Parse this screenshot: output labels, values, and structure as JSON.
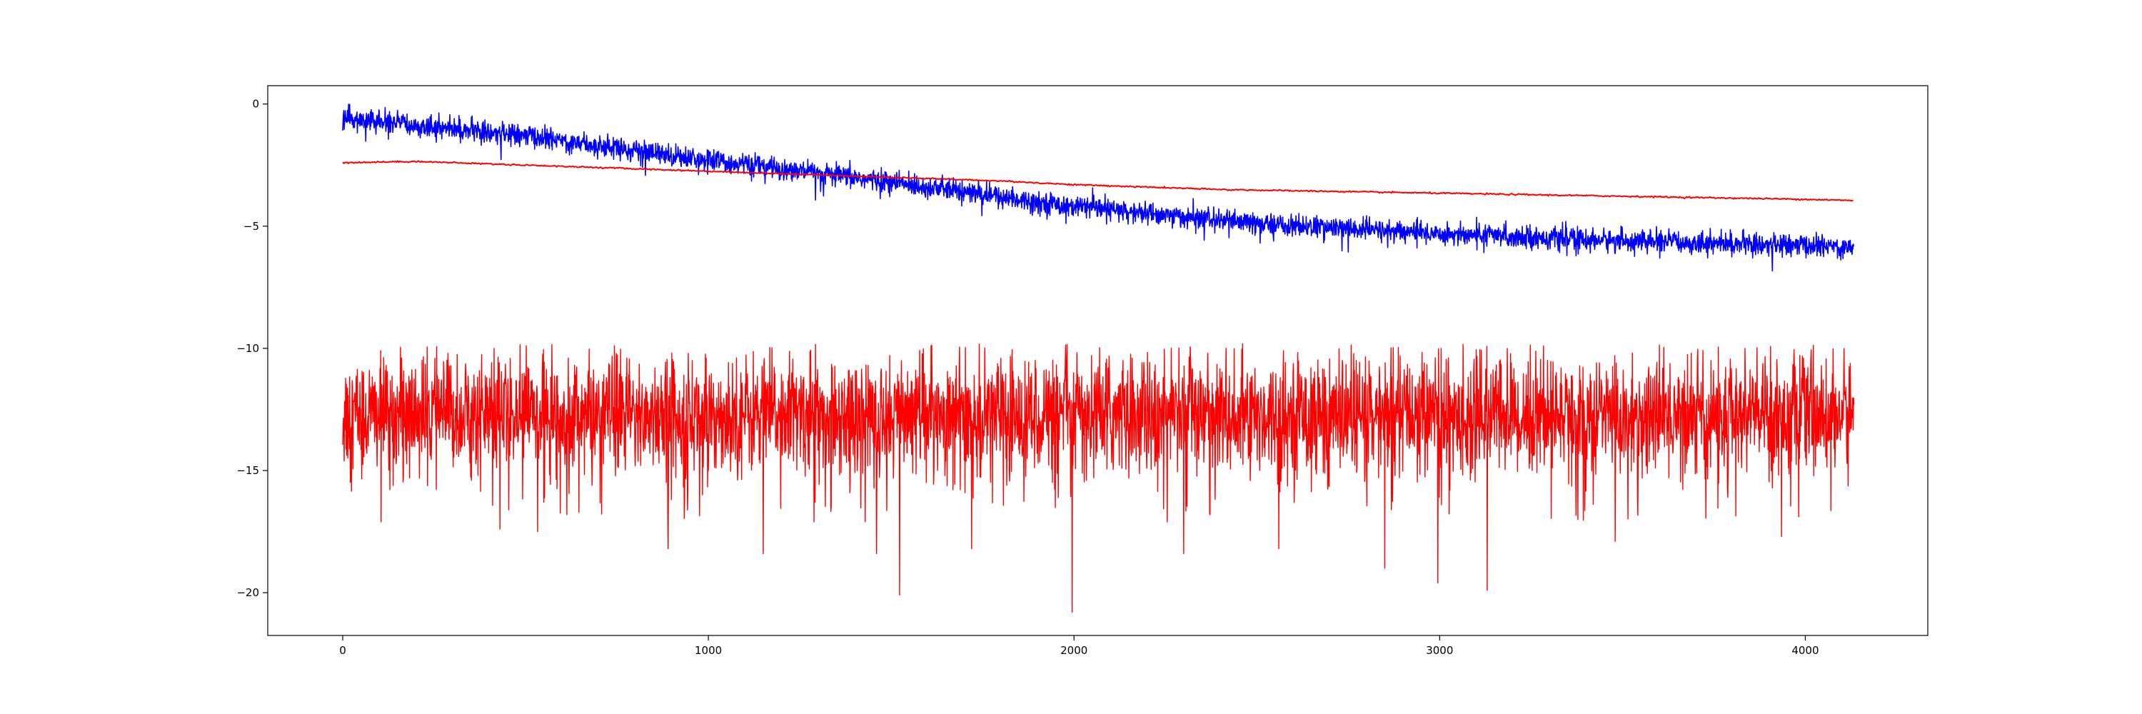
{
  "chart_data": {
    "type": "line",
    "title": "",
    "xlabel": "",
    "ylabel": "",
    "xlim": [
      -205,
      4335
    ],
    "ylim": [
      -21.75,
      0.75
    ],
    "x_ticks": [
      0,
      1000,
      2000,
      3000,
      4000
    ],
    "y_ticks": [
      0,
      -5,
      -10,
      -15,
      -20
    ],
    "x_tick_labels": [
      "0",
      "1000",
      "2000",
      "3000",
      "4000"
    ],
    "y_tick_labels": [
      "0",
      "−5",
      "−10",
      "−15",
      "−20"
    ],
    "grid": false,
    "legend": "none",
    "n_points": 4134,
    "series": [
      {
        "color": "#0000ff",
        "style": "noisy-decreasing",
        "trend_x": [
          0,
          500,
          1000,
          1500,
          2000,
          2500,
          3000,
          3500,
          4000,
          4133
        ],
        "trend_y": [
          -0.6,
          -1.3,
          -2.3,
          -3.2,
          -4.2,
          -4.9,
          -5.3,
          -5.6,
          -5.8,
          -5.85
        ],
        "noise_amplitude": 0.22
      },
      {
        "color": "#ff0000",
        "style": "smooth",
        "x": [
          0,
          200,
          400,
          600,
          800,
          1000,
          1200,
          1400,
          1600,
          1800,
          2000,
          2200,
          2400,
          2600,
          2800,
          3000,
          3200,
          3400,
          3600,
          3800,
          4000,
          4133
        ],
        "y": [
          -2.4,
          -2.35,
          -2.45,
          -2.55,
          -2.65,
          -2.75,
          -2.85,
          -2.95,
          -3.05,
          -3.15,
          -3.3,
          -3.4,
          -3.5,
          -3.55,
          -3.6,
          -3.65,
          -3.7,
          -3.75,
          -3.8,
          -3.85,
          -3.9,
          -3.95
        ]
      },
      {
        "color": "#ff0000",
        "style": "noisy-flat",
        "mean": -12.7,
        "spread": 1.2,
        "max_observed": -9.8,
        "min_observed": -20.8,
        "spikes": [
          {
            "x": 105,
            "y": -17.1
          },
          {
            "x": 430,
            "y": -17.4
          },
          {
            "x": 533,
            "y": -17.5
          },
          {
            "x": 890,
            "y": -18.2
          },
          {
            "x": 1150,
            "y": -18.4
          },
          {
            "x": 1460,
            "y": -18.4
          },
          {
            "x": 1523,
            "y": -20.1
          },
          {
            "x": 1720,
            "y": -18.2
          },
          {
            "x": 1995,
            "y": -20.8
          },
          {
            "x": 2300,
            "y": -18.4
          },
          {
            "x": 2560,
            "y": -18.2
          },
          {
            "x": 2850,
            "y": -19.0
          },
          {
            "x": 2995,
            "y": -19.6
          },
          {
            "x": 3130,
            "y": -19.9
          },
          {
            "x": 3480,
            "y": -17.9
          },
          {
            "x": 3935,
            "y": -17.7
          }
        ]
      }
    ]
  }
}
